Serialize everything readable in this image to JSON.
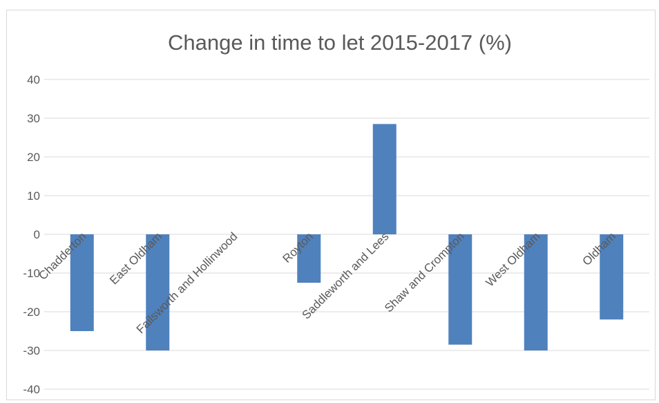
{
  "chart_data": {
    "type": "bar",
    "title": "Change in time to let 2015-2017 (%)",
    "xlabel": "",
    "ylabel": "",
    "ylim": [
      -40,
      40
    ],
    "yticks": [
      40,
      30,
      20,
      10,
      0,
      -10,
      -20,
      -30,
      -40
    ],
    "grid": true,
    "legend": "none",
    "bar_color": "#4f81bd",
    "categories": [
      "Chadderton",
      "East Oldham",
      "Failsworth and Hollinwood",
      "Royton",
      "Saddleworth and Lees",
      "Shaw and Crompton",
      "West Oldham",
      "Oldham"
    ],
    "values": [
      -25,
      -30,
      0,
      -12.5,
      28.5,
      -28.5,
      -30,
      -22
    ]
  }
}
